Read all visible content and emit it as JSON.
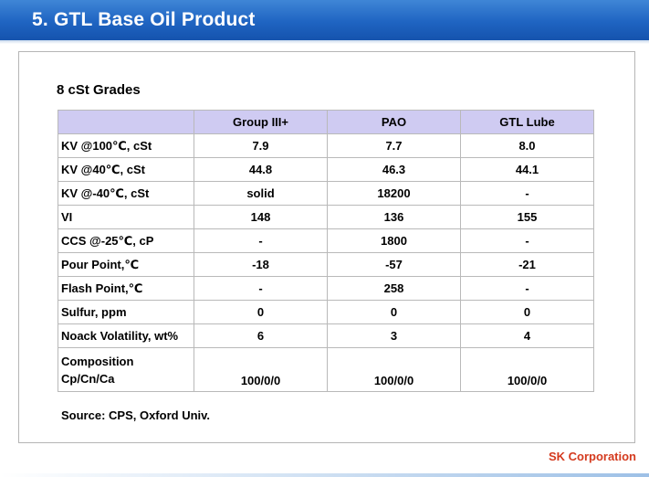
{
  "header": {
    "title": "5. GTL Base Oil Product"
  },
  "section": {
    "subtitle": "8 cSt Grades"
  },
  "table": {
    "columns": [
      "Group III+",
      "PAO",
      "GTL Lube"
    ],
    "rows": [
      {
        "label": "KV @100℃, cSt",
        "values": [
          "7.9",
          "7.7",
          "8.0"
        ]
      },
      {
        "label": "KV @40℃, cSt",
        "values": [
          "44.8",
          "46.3",
          "44.1"
        ]
      },
      {
        "label": "KV @-40℃, cSt",
        "values": [
          "solid",
          "18200",
          "-"
        ]
      },
      {
        "label": "VI",
        "values": [
          "148",
          "136",
          "155"
        ]
      },
      {
        "label": "CCS @-25℃, cP",
        "values": [
          "-",
          "1800",
          "-"
        ]
      },
      {
        "label": "Pour Point,℃",
        "values": [
          "-18",
          "-57",
          "-21"
        ]
      },
      {
        "label": "Flash Point,℃",
        "values": [
          "-",
          "258",
          "-"
        ]
      },
      {
        "label": "Sulfur, ppm",
        "values": [
          "0",
          "0",
          "0"
        ]
      },
      {
        "label": "Noack Volatility, wt%",
        "values": [
          "6",
          "3",
          "4"
        ]
      },
      {
        "label_line1": "Composition",
        "label_line2": "Cp/Cn/Ca",
        "values": [
          "100/0/0",
          "100/0/0",
          "100/0/0"
        ]
      }
    ]
  },
  "footer": {
    "source": "Source: CPS, Oxford Univ.",
    "company": "SK Corporation"
  },
  "colors": {
    "title_bar": "#1f64c2",
    "header_row": "#cfcbf2",
    "company_text": "#d43a1e"
  }
}
